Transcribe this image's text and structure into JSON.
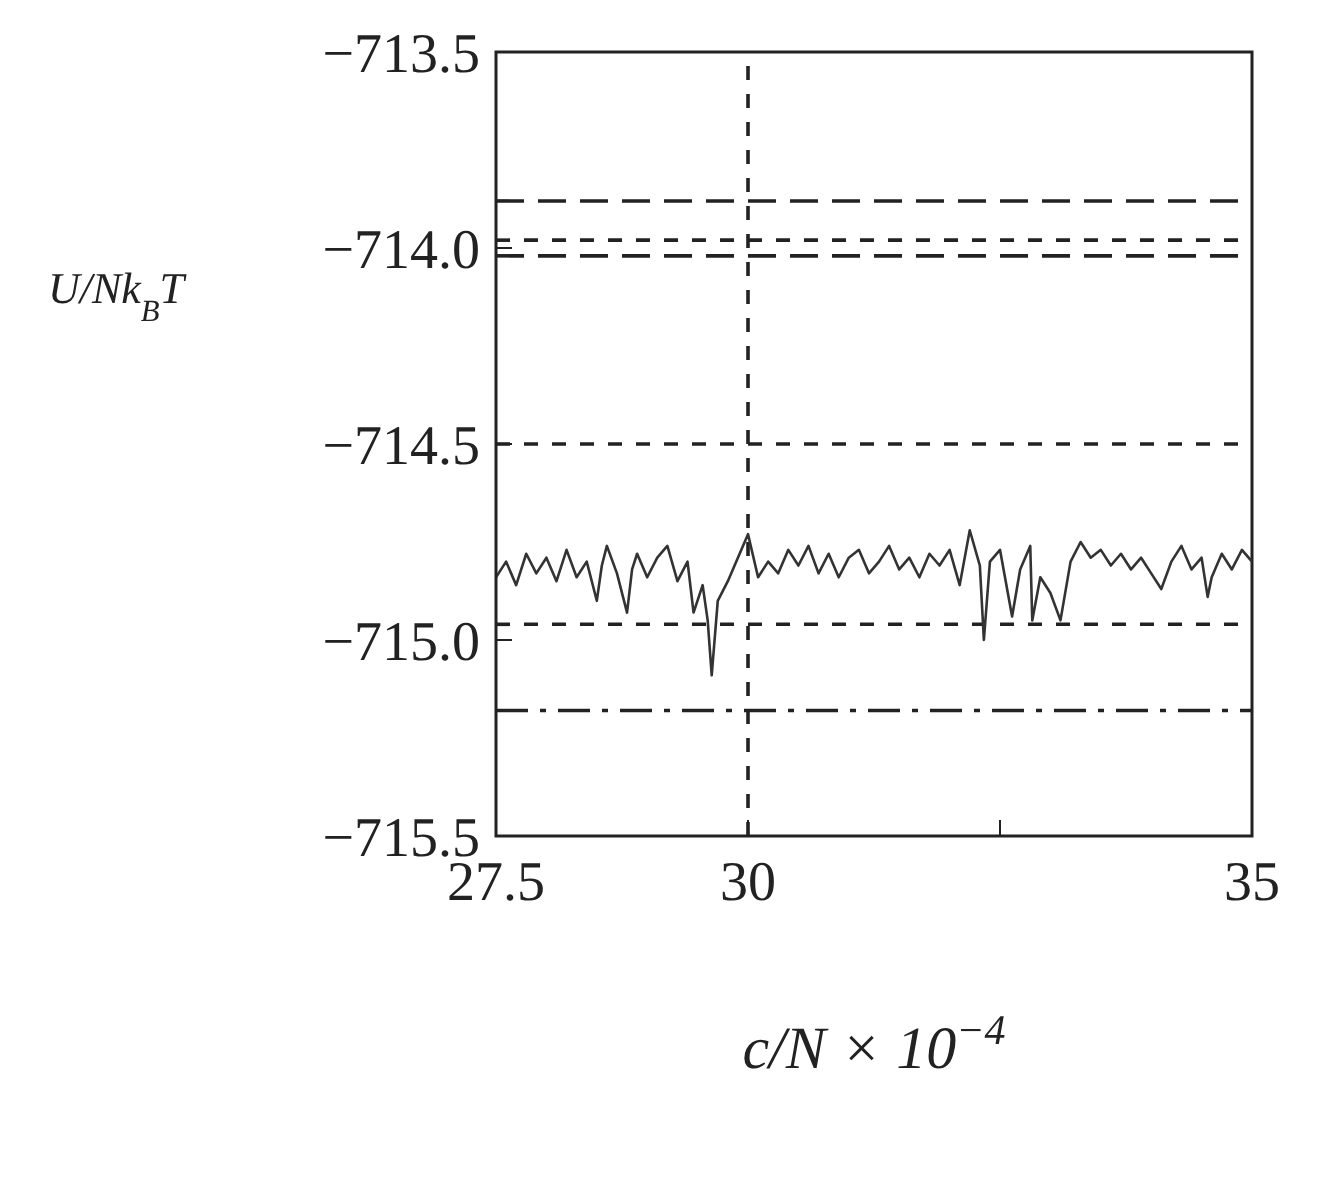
{
  "chart_data": {
    "type": "line",
    "xlabel": "c/N × 10$^{−4}$",
    "ylabel": "U/Nk$_{B}$T",
    "xlim": [
      27.5,
      35
    ],
    "xticks": [
      27.5,
      30,
      {
        "value": 32.5,
        "label": null
      },
      35
    ],
    "ylim": [
      -715.5,
      -713.5
    ],
    "yticks": [
      {
        "value": -713.5,
        "label": "−713.5"
      },
      {
        "value": -714.0,
        "label": "−714.0"
      },
      {
        "value": -714.5,
        "label": "−714.5"
      },
      {
        "value": -715.0,
        "label": "−715.0"
      },
      {
        "value": -715.5,
        "label": "−715.5"
      }
    ],
    "grid": false,
    "legend": false,
    "marker": "none",
    "line_style": "solid",
    "ref_lines": [
      {
        "axis": "y",
        "value": -713.88,
        "line_style": "dashed",
        "color": "#222222"
      },
      {
        "axis": "y",
        "value": -713.98,
        "line_style": "dotted",
        "color": "#222222"
      },
      {
        "axis": "y",
        "value": -714.02,
        "line_style": "dashed",
        "color": "#222222"
      },
      {
        "axis": "y",
        "value": -714.5,
        "line_style": "dotted",
        "color": "#222222"
      },
      {
        "axis": "y",
        "value": -714.96,
        "line_style": "dotted",
        "color": "#222222"
      },
      {
        "axis": "y",
        "value": -715.18,
        "line_style": "dashdot",
        "color": "#222222"
      },
      {
        "axis": "x",
        "value": 30,
        "line_style": "dotted",
        "color": "#222222"
      }
    ],
    "series": [
      {
        "color": "#333333",
        "x": [
          27.5,
          27.6,
          27.7,
          27.8,
          27.9,
          28.0,
          28.1,
          28.2,
          28.3,
          28.4,
          28.5,
          28.55,
          28.6,
          28.7,
          28.8,
          28.85,
          28.9,
          29.0,
          29.1,
          29.2,
          29.3,
          29.4,
          29.46,
          29.55,
          29.6,
          29.64,
          29.7,
          29.8,
          29.9,
          30.0,
          30.1,
          30.2,
          30.3,
          30.4,
          30.5,
          30.6,
          30.7,
          30.8,
          30.9,
          31.0,
          31.1,
          31.2,
          31.3,
          31.4,
          31.5,
          31.6,
          31.7,
          31.8,
          31.9,
          32.0,
          32.1,
          32.2,
          32.3,
          32.34,
          32.4,
          32.5,
          32.62,
          32.7,
          32.8,
          32.82,
          32.9,
          33.0,
          33.1,
          33.2,
          33.3,
          33.4,
          33.5,
          33.6,
          33.7,
          33.8,
          33.9,
          34.0,
          34.1,
          34.2,
          34.3,
          34.4,
          34.5,
          34.56,
          34.6,
          34.7,
          34.8,
          34.9,
          35.0
        ],
        "values": [
          -714.84,
          -714.8,
          -714.86,
          -714.78,
          -714.83,
          -714.79,
          -714.85,
          -714.77,
          -714.84,
          -714.8,
          -714.9,
          -714.81,
          -714.76,
          -714.83,
          -714.93,
          -714.82,
          -714.78,
          -714.84,
          -714.79,
          -714.76,
          -714.85,
          -714.8,
          -714.93,
          -714.86,
          -714.95,
          -715.09,
          -714.9,
          -714.85,
          -714.79,
          -714.73,
          -714.84,
          -714.8,
          -714.83,
          -714.77,
          -714.81,
          -714.76,
          -714.83,
          -714.78,
          -714.84,
          -714.79,
          -714.77,
          -714.83,
          -714.8,
          -714.76,
          -714.82,
          -714.79,
          -714.84,
          -714.78,
          -714.81,
          -714.77,
          -714.86,
          -714.72,
          -714.81,
          -715.0,
          -714.8,
          -714.77,
          -714.94,
          -714.82,
          -714.76,
          -714.95,
          -714.84,
          -714.88,
          -714.95,
          -714.8,
          -714.75,
          -714.79,
          -714.77,
          -714.81,
          -714.78,
          -714.82,
          -714.79,
          -714.83,
          -714.87,
          -714.8,
          -714.76,
          -714.82,
          -714.79,
          -714.89,
          -714.84,
          -714.78,
          -714.82,
          -714.77,
          -714.8
        ]
      }
    ]
  }
}
